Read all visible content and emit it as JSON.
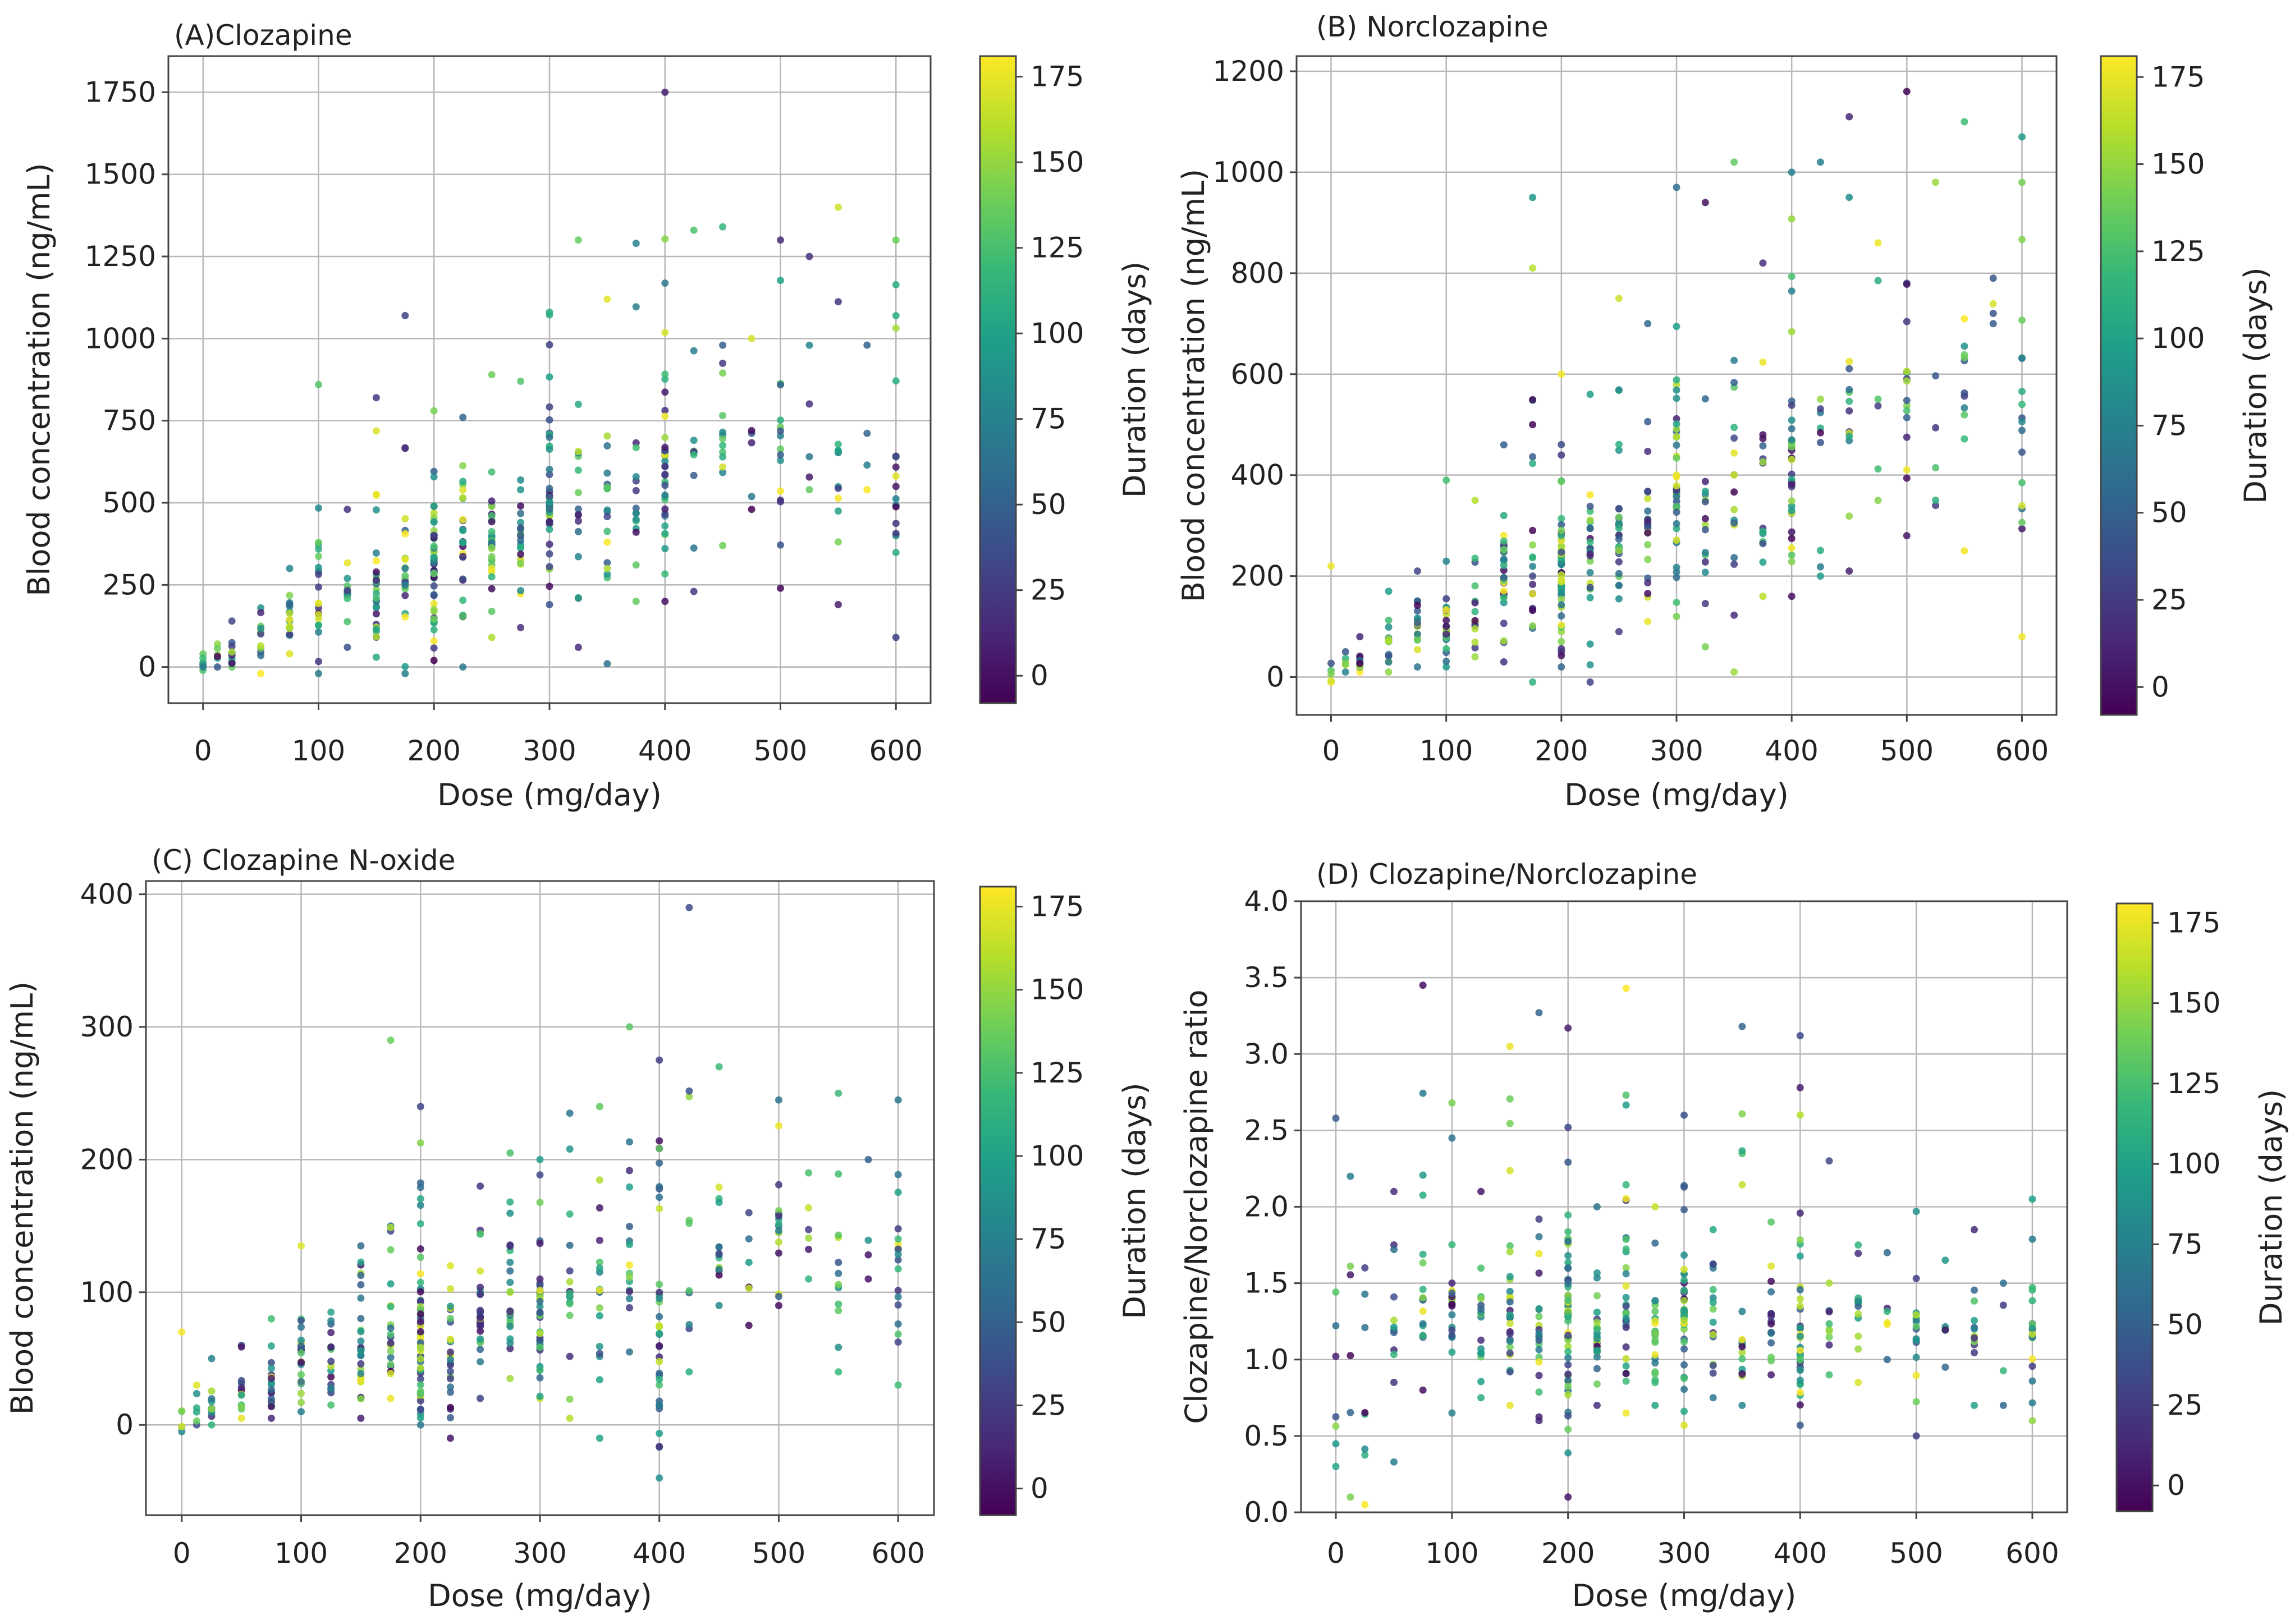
{
  "colorbar_label": "Duration (days)",
  "colorbar_ticks": [
    0,
    25,
    50,
    75,
    100,
    125,
    150,
    175
  ],
  "colormap": [
    "#440154",
    "#482878",
    "#3e4989",
    "#31688e",
    "#26828e",
    "#1f9e89",
    "#35b779",
    "#6ece58",
    "#b5de2b",
    "#fde725"
  ],
  "chart_data": [
    {
      "id": "A",
      "type": "scatter",
      "title": "(A)Clozapine",
      "xlabel": "Dose (mg/day)",
      "ylabel": "Blood concentration (ng/mL)",
      "xlim": [
        -30,
        630
      ],
      "ylim": [
        -110,
        1860
      ],
      "xticks": [
        0,
        100,
        200,
        300,
        400,
        500,
        600
      ],
      "yticks": [
        0,
        250,
        500,
        750,
        1000,
        1250,
        1500,
        1750
      ],
      "dose_levels": [
        0,
        12.5,
        25,
        50,
        75,
        100,
        125,
        150,
        175,
        200,
        225,
        250,
        275,
        300,
        325,
        350,
        375,
        400,
        425,
        450,
        475,
        500,
        525,
        550,
        575,
        600
      ],
      "group_stats": [
        {
          "dose": 0,
          "n": 6,
          "min": -10,
          "max": 40,
          "median": 10
        },
        {
          "dose": 12.5,
          "n": 6,
          "min": 0,
          "max": 70,
          "median": 30
        },
        {
          "dose": 25,
          "n": 10,
          "min": 0,
          "max": 140,
          "median": 50
        },
        {
          "dose": 50,
          "n": 12,
          "min": -20,
          "max": 180,
          "median": 90
        },
        {
          "dose": 75,
          "n": 18,
          "min": 40,
          "max": 300,
          "median": 140
        },
        {
          "dose": 100,
          "n": 22,
          "min": -20,
          "max": 860,
          "median": 190
        },
        {
          "dose": 125,
          "n": 16,
          "min": 60,
          "max": 480,
          "median": 220
        },
        {
          "dose": 150,
          "n": 30,
          "min": 30,
          "max": 820,
          "median": 260
        },
        {
          "dose": 175,
          "n": 22,
          "min": -20,
          "max": 1070,
          "median": 300
        },
        {
          "dose": 200,
          "n": 55,
          "min": 20,
          "max": 780,
          "median": 320
        },
        {
          "dose": 225,
          "n": 26,
          "min": 0,
          "max": 760,
          "median": 350
        },
        {
          "dose": 250,
          "n": 32,
          "min": 90,
          "max": 890,
          "median": 400
        },
        {
          "dose": 275,
          "n": 24,
          "min": 120,
          "max": 870,
          "median": 420
        },
        {
          "dose": 300,
          "n": 42,
          "min": 190,
          "max": 1080,
          "median": 500
        },
        {
          "dose": 325,
          "n": 16,
          "min": 60,
          "max": 1300,
          "median": 520
        },
        {
          "dose": 350,
          "n": 18,
          "min": 10,
          "max": 1120,
          "median": 540
        },
        {
          "dose": 375,
          "n": 16,
          "min": 200,
          "max": 1290,
          "median": 560
        },
        {
          "dose": 400,
          "n": 36,
          "min": 200,
          "max": 1750,
          "median": 600
        },
        {
          "dose": 425,
          "n": 10,
          "min": 230,
          "max": 1330,
          "median": 640
        },
        {
          "dose": 450,
          "n": 14,
          "min": 370,
          "max": 1340,
          "median": 700
        },
        {
          "dose": 475,
          "n": 6,
          "min": 480,
          "max": 1000,
          "median": 700
        },
        {
          "dose": 500,
          "n": 16,
          "min": 240,
          "max": 1300,
          "median": 720
        },
        {
          "dose": 525,
          "n": 6,
          "min": 540,
          "max": 1250,
          "median": 800
        },
        {
          "dose": 550,
          "n": 12,
          "min": 190,
          "max": 1400,
          "median": 650
        },
        {
          "dose": 575,
          "n": 4,
          "min": 540,
          "max": 980,
          "median": 700
        },
        {
          "dose": 600,
          "n": 18,
          "min": 90,
          "max": 1300,
          "median": 640
        }
      ]
    },
    {
      "id": "B",
      "type": "scatter",
      "title": "(B) Norclozapine",
      "xlabel": "Dose (mg/day)",
      "ylabel": "Blood concentration (ng/mL)",
      "xlim": [
        -30,
        630
      ],
      "ylim": [
        -75,
        1230
      ],
      "xticks": [
        0,
        100,
        200,
        300,
        400,
        500,
        600
      ],
      "yticks": [
        0,
        200,
        400,
        600,
        800,
        1000,
        1200
      ],
      "dose_levels": [
        0,
        12.5,
        25,
        50,
        75,
        100,
        125,
        150,
        175,
        200,
        225,
        250,
        275,
        300,
        325,
        350,
        375,
        400,
        425,
        450,
        475,
        500,
        525,
        550,
        575,
        600
      ],
      "group_stats": [
        {
          "dose": 0,
          "n": 6,
          "min": -10,
          "max": 220,
          "median": 10
        },
        {
          "dose": 12.5,
          "n": 6,
          "min": 10,
          "max": 50,
          "median": 25
        },
        {
          "dose": 25,
          "n": 10,
          "min": 10,
          "max": 80,
          "median": 40
        },
        {
          "dose": 50,
          "n": 12,
          "min": 10,
          "max": 170,
          "median": 70
        },
        {
          "dose": 75,
          "n": 18,
          "min": 20,
          "max": 210,
          "median": 100
        },
        {
          "dose": 100,
          "n": 22,
          "min": 20,
          "max": 390,
          "median": 130
        },
        {
          "dose": 125,
          "n": 16,
          "min": 40,
          "max": 350,
          "median": 150
        },
        {
          "dose": 150,
          "n": 30,
          "min": 30,
          "max": 460,
          "median": 180
        },
        {
          "dose": 175,
          "n": 22,
          "min": -10,
          "max": 950,
          "median": 200
        },
        {
          "dose": 200,
          "n": 55,
          "min": 20,
          "max": 600,
          "median": 230
        },
        {
          "dose": 225,
          "n": 26,
          "min": -10,
          "max": 560,
          "median": 240
        },
        {
          "dose": 250,
          "n": 32,
          "min": 90,
          "max": 750,
          "median": 280
        },
        {
          "dose": 275,
          "n": 24,
          "min": 110,
          "max": 700,
          "median": 300
        },
        {
          "dose": 300,
          "n": 42,
          "min": 120,
          "max": 970,
          "median": 360
        },
        {
          "dose": 325,
          "n": 16,
          "min": 60,
          "max": 940,
          "median": 360
        },
        {
          "dose": 350,
          "n": 18,
          "min": 10,
          "max": 1020,
          "median": 400
        },
        {
          "dose": 375,
          "n": 16,
          "min": 160,
          "max": 820,
          "median": 420
        },
        {
          "dose": 400,
          "n": 36,
          "min": 160,
          "max": 1000,
          "median": 460
        },
        {
          "dose": 425,
          "n": 10,
          "min": 200,
          "max": 1020,
          "median": 480
        },
        {
          "dose": 450,
          "n": 14,
          "min": 210,
          "max": 1110,
          "median": 540
        },
        {
          "dose": 475,
          "n": 6,
          "min": 350,
          "max": 860,
          "median": 560
        },
        {
          "dose": 500,
          "n": 16,
          "min": 280,
          "max": 1160,
          "median": 600
        },
        {
          "dose": 525,
          "n": 6,
          "min": 340,
          "max": 980,
          "median": 600
        },
        {
          "dose": 550,
          "n": 12,
          "min": 250,
          "max": 1100,
          "median": 560
        },
        {
          "dose": 575,
          "n": 4,
          "min": 700,
          "max": 790,
          "median": 740
        },
        {
          "dose": 600,
          "n": 18,
          "min": 80,
          "max": 1070,
          "median": 600
        }
      ]
    },
    {
      "id": "C",
      "type": "scatter",
      "title": "(C) Clozapine N-oxide",
      "xlabel": "Dose (mg/day)",
      "ylabel": "Blood concentration (ng/mL)",
      "xlim": [
        -30,
        630
      ],
      "ylim": [
        -68,
        410
      ],
      "xticks": [
        0,
        100,
        200,
        300,
        400,
        500,
        600
      ],
      "yticks": [
        0,
        100,
        200,
        300,
        400
      ],
      "dose_levels": [
        0,
        12.5,
        25,
        50,
        75,
        100,
        125,
        150,
        175,
        200,
        225,
        250,
        275,
        300,
        325,
        350,
        375,
        400,
        425,
        450,
        475,
        500,
        525,
        550,
        575,
        600
      ],
      "group_stats": [
        {
          "dose": 0,
          "n": 6,
          "min": -5,
          "max": 70,
          "median": 10
        },
        {
          "dose": 12.5,
          "n": 6,
          "min": 0,
          "max": 30,
          "median": 12
        },
        {
          "dose": 25,
          "n": 10,
          "min": 0,
          "max": 50,
          "median": 20
        },
        {
          "dose": 50,
          "n": 12,
          "min": 5,
          "max": 60,
          "median": 30
        },
        {
          "dose": 75,
          "n": 18,
          "min": 5,
          "max": 80,
          "median": 35
        },
        {
          "dose": 100,
          "n": 22,
          "min": 10,
          "max": 135,
          "median": 45
        },
        {
          "dose": 125,
          "n": 16,
          "min": 15,
          "max": 85,
          "median": 50
        },
        {
          "dose": 150,
          "n": 30,
          "min": 5,
          "max": 135,
          "median": 55
        },
        {
          "dose": 175,
          "n": 22,
          "min": 20,
          "max": 290,
          "median": 60
        },
        {
          "dose": 200,
          "n": 55,
          "min": 0,
          "max": 240,
          "median": 70
        },
        {
          "dose": 225,
          "n": 26,
          "min": -10,
          "max": 120,
          "median": 70
        },
        {
          "dose": 250,
          "n": 32,
          "min": 20,
          "max": 180,
          "median": 80
        },
        {
          "dose": 275,
          "n": 24,
          "min": 35,
          "max": 205,
          "median": 85
        },
        {
          "dose": 300,
          "n": 42,
          "min": 20,
          "max": 200,
          "median": 95
        },
        {
          "dose": 325,
          "n": 16,
          "min": 5,
          "max": 235,
          "median": 100
        },
        {
          "dose": 350,
          "n": 18,
          "min": -10,
          "max": 240,
          "median": 100
        },
        {
          "dose": 375,
          "n": 16,
          "min": 55,
          "max": 300,
          "median": 120
        },
        {
          "dose": 400,
          "n": 36,
          "min": -40,
          "max": 275,
          "median": 130
        },
        {
          "dose": 425,
          "n": 10,
          "min": 40,
          "max": 390,
          "median": 150
        },
        {
          "dose": 450,
          "n": 14,
          "min": 90,
          "max": 270,
          "median": 140
        },
        {
          "dose": 475,
          "n": 6,
          "min": 75,
          "max": 160,
          "median": 120
        },
        {
          "dose": 500,
          "n": 16,
          "min": 90,
          "max": 245,
          "median": 150
        },
        {
          "dose": 525,
          "n": 6,
          "min": 110,
          "max": 190,
          "median": 140
        },
        {
          "dose": 550,
          "n": 12,
          "min": 40,
          "max": 250,
          "median": 130
        },
        {
          "dose": 575,
          "n": 4,
          "min": 110,
          "max": 200,
          "median": 150
        },
        {
          "dose": 600,
          "n": 18,
          "min": 30,
          "max": 245,
          "median": 160
        }
      ]
    },
    {
      "id": "D",
      "type": "scatter",
      "title": "(D) Clozapine/Norclozapine",
      "xlabel": "Dose (mg/day)",
      "ylabel": "Clozapine/Norclozapine ratio",
      "xlim": [
        -30,
        630
      ],
      "ylim": [
        0.0,
        4.0
      ],
      "xticks": [
        0,
        100,
        200,
        300,
        400,
        500,
        600
      ],
      "yticks": [
        "0.0",
        "0.5",
        "1.0",
        "1.5",
        "2.0",
        "2.5",
        "3.0",
        "3.5",
        "4.0"
      ],
      "dose_levels": [
        0,
        12.5,
        25,
        50,
        75,
        100,
        125,
        150,
        175,
        200,
        225,
        250,
        275,
        300,
        325,
        350,
        375,
        400,
        425,
        450,
        475,
        500,
        525,
        550,
        575,
        600
      ],
      "group_stats": [
        {
          "dose": 0,
          "n": 8,
          "min": 0.3,
          "max": 2.58,
          "median": 1.0
        },
        {
          "dose": 12.5,
          "n": 6,
          "min": 0.1,
          "max": 2.2,
          "median": 1.2
        },
        {
          "dose": 25,
          "n": 8,
          "min": 0.05,
          "max": 1.6,
          "median": 1.1
        },
        {
          "dose": 50,
          "n": 12,
          "min": 0.33,
          "max": 2.1,
          "median": 1.3
        },
        {
          "dose": 75,
          "n": 18,
          "min": 0.8,
          "max": 3.45,
          "median": 1.4
        },
        {
          "dose": 100,
          "n": 22,
          "min": 0.65,
          "max": 2.68,
          "median": 1.4
        },
        {
          "dose": 125,
          "n": 16,
          "min": 0.75,
          "max": 2.1,
          "median": 1.3
        },
        {
          "dose": 150,
          "n": 30,
          "min": 0.7,
          "max": 3.05,
          "median": 1.4
        },
        {
          "dose": 175,
          "n": 22,
          "min": 0.6,
          "max": 3.27,
          "median": 1.3
        },
        {
          "dose": 200,
          "n": 55,
          "min": 0.1,
          "max": 3.17,
          "median": 1.3
        },
        {
          "dose": 225,
          "n": 26,
          "min": 0.7,
          "max": 2.0,
          "median": 1.2
        },
        {
          "dose": 250,
          "n": 32,
          "min": 0.65,
          "max": 3.43,
          "median": 1.3
        },
        {
          "dose": 275,
          "n": 24,
          "min": 0.7,
          "max": 2.0,
          "median": 1.2
        },
        {
          "dose": 300,
          "n": 42,
          "min": 0.57,
          "max": 2.6,
          "median": 1.3
        },
        {
          "dose": 325,
          "n": 16,
          "min": 0.75,
          "max": 1.85,
          "median": 1.2
        },
        {
          "dose": 350,
          "n": 18,
          "min": 0.7,
          "max": 3.18,
          "median": 1.3
        },
        {
          "dose": 375,
          "n": 16,
          "min": 0.9,
          "max": 1.9,
          "median": 1.3
        },
        {
          "dose": 400,
          "n": 36,
          "min": 0.57,
          "max": 3.12,
          "median": 1.2
        },
        {
          "dose": 425,
          "n": 10,
          "min": 0.9,
          "max": 2.3,
          "median": 1.3
        },
        {
          "dose": 450,
          "n": 14,
          "min": 0.85,
          "max": 1.75,
          "median": 1.3
        },
        {
          "dose": 475,
          "n": 6,
          "min": 1.0,
          "max": 1.7,
          "median": 1.3
        },
        {
          "dose": 500,
          "n": 16,
          "min": 0.5,
          "max": 1.97,
          "median": 1.2
        },
        {
          "dose": 525,
          "n": 6,
          "min": 0.95,
          "max": 1.65,
          "median": 1.2
        },
        {
          "dose": 550,
          "n": 12,
          "min": 0.7,
          "max": 1.85,
          "median": 1.2
        },
        {
          "dose": 575,
          "n": 4,
          "min": 0.7,
          "max": 1.5,
          "median": 1.1
        },
        {
          "dose": 600,
          "n": 18,
          "min": 0.6,
          "max": 2.05,
          "median": 1.2
        }
      ]
    }
  ]
}
